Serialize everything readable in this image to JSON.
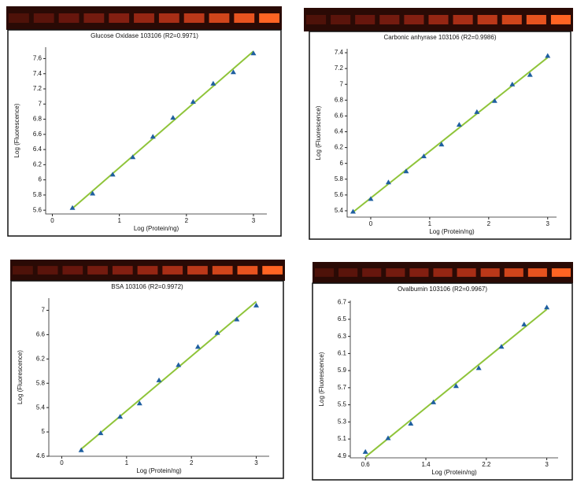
{
  "chart_data": [
    {
      "type": "scatter",
      "title": "Glucose Oxidase 103106 (R2=0.9971)",
      "x_label": "Log (Protein/ng)",
      "y_label": "Log (Fluorescence)",
      "series": [
        {
          "color": "#1f5fa0",
          "x": [
            0.3,
            0.6,
            0.9,
            1.2,
            1.5,
            1.8,
            2.1,
            2.4,
            2.7,
            3.0
          ],
          "values": [
            5.63,
            5.82,
            6.07,
            6.3,
            6.57,
            6.82,
            7.03,
            7.27,
            7.42,
            7.67
          ]
        }
      ],
      "fit_color": "#8fc43a",
      "xlim": [
        -0.1,
        3.2
      ],
      "ylim": [
        5.55,
        7.75
      ],
      "xticks": [
        0,
        1,
        2,
        3
      ],
      "yticks": [
        5.6,
        5.8,
        6,
        6.2,
        6.4,
        6.6,
        6.8,
        7,
        7.2,
        7.4,
        7.6
      ]
    },
    {
      "type": "scatter",
      "title": "Carbonic anhyrase 103106 (R2=0.9986)",
      "x_label": "Log (Protein/ng)",
      "y_label": "Log (Fluorescence)",
      "series": [
        {
          "color": "#1f5fa0",
          "x": [
            -0.3,
            0,
            0.3,
            0.6,
            0.9,
            1.2,
            1.5,
            1.8,
            2.1,
            2.4,
            2.7,
            3.0
          ],
          "values": [
            5.39,
            5.55,
            5.76,
            5.9,
            6.09,
            6.24,
            6.49,
            6.65,
            6.79,
            7.0,
            7.12,
            7.36
          ]
        }
      ],
      "fit_color": "#8fc43a",
      "xlim": [
        -0.4,
        3.15
      ],
      "ylim": [
        5.32,
        7.45
      ],
      "xticks": [
        0,
        1,
        2,
        3
      ],
      "yticks": [
        5.4,
        5.6,
        5.8,
        6,
        6.2,
        6.4,
        6.6,
        6.8,
        7,
        7.2,
        7.4
      ]
    },
    {
      "type": "scatter",
      "title": "BSA 103106 (R2=0.9972)",
      "x_label": "Log (Protein/ng)",
      "y_label": "Log (Fluorescence)",
      "series": [
        {
          "color": "#1f5fa0",
          "x": [
            0.3,
            0.6,
            0.9,
            1.2,
            1.5,
            1.8,
            2.1,
            2.4,
            2.7,
            3.0
          ],
          "values": [
            4.7,
            4.98,
            5.25,
            5.47,
            5.85,
            6.1,
            6.4,
            6.63,
            6.85,
            7.08
          ]
        }
      ],
      "fit_color": "#8fc43a",
      "xlim": [
        -0.2,
        3.2
      ],
      "ylim": [
        4.6,
        7.2
      ],
      "xticks": [
        0,
        1,
        2,
        3
      ],
      "yticks": [
        4.6,
        5,
        5.4,
        5.8,
        6.2,
        6.6,
        7
      ]
    },
    {
      "type": "scatter",
      "title": "Ovalbumin 103106 (R2=0.9967)",
      "x_label": "Log (Protein/ng)",
      "y_label": "Log (Fluorescence)",
      "series": [
        {
          "color": "#1f5fa0",
          "x": [
            0.6,
            0.9,
            1.2,
            1.5,
            1.8,
            2.1,
            2.4,
            2.7,
            3.0
          ],
          "values": [
            4.95,
            5.11,
            5.28,
            5.53,
            5.72,
            5.93,
            6.18,
            6.44,
            6.64
          ]
        }
      ],
      "fit_color": "#8fc43a",
      "xlim": [
        0.4,
        3.15
      ],
      "ylim": [
        4.88,
        6.72
      ],
      "xticks": [
        0.6,
        1.4,
        2.2,
        3
      ],
      "yticks": [
        4.9,
        5.1,
        5.3,
        5.5,
        5.7,
        5.9,
        6.1,
        6.3,
        6.5,
        6.7
      ]
    }
  ]
}
